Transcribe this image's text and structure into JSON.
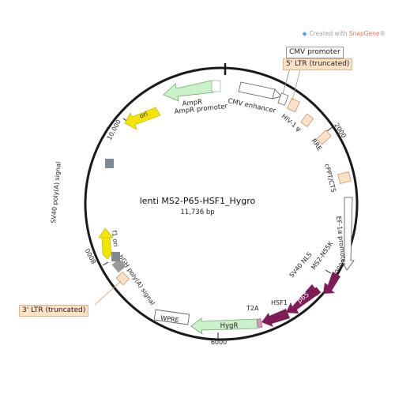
{
  "credit": {
    "prefix": "Created with ",
    "brand": "SnapGene",
    "mark": "®"
  },
  "plasmid": {
    "name": "lenti MS2-P65-HSF1_Hygro",
    "size": "11,736 bp"
  },
  "ticks": [
    "10,000",
    "2000",
    "4000",
    "6000",
    "8000"
  ],
  "callouts": {
    "cmv_promoter": "CMV promoter",
    "ltr5": "5' LTR (truncated)",
    "ltr3": "3' LTR (truncated)"
  },
  "features": {
    "cmv_enhancer": "CMV enhancer",
    "ampr": "AmpR",
    "ampr_promoter": "AmpR promoter",
    "ori": "ori",
    "hiv1_psi": "HIV-1 ψ",
    "rre": "RRE",
    "cppt_cts": "cPPT/CTS",
    "ef1a_promoter": "EF-1α promoter",
    "ms2_n55k": "MS2-N55K",
    "sv40_nls": "SV40 NLS",
    "p65": "p65",
    "hsf1": "HSF1",
    "t2a": "T2A",
    "hygr": "HygR",
    "wpre": "WPRE",
    "bgh_polya": "bGH poly(A) signal",
    "f1_ori": "f1 ori",
    "sv40_polya": "SV40 poly(A) signal"
  },
  "colors": {
    "backbone": "#1a1a1a",
    "ampr": "#c9f2c9",
    "ori": "#f2e600",
    "ltr": "#fbe1c6",
    "gray_feature": "#9a9a9a",
    "slate_feature": "#7f8a95",
    "purple": "#7d1c55",
    "hygr": "#c9f2c9",
    "t2a": "#d49ab5",
    "credit_brand": "#e8745a"
  }
}
